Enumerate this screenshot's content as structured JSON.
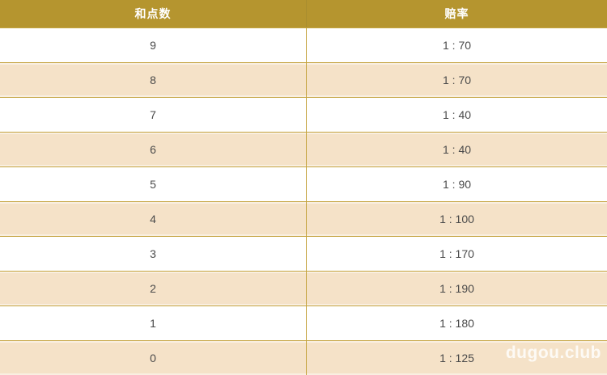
{
  "table": {
    "columns": [
      {
        "label": "和点数"
      },
      {
        "label": "赔率"
      }
    ],
    "rows": [
      {
        "points": "9",
        "odds": "1 : 70"
      },
      {
        "points": "8",
        "odds": "1 : 70"
      },
      {
        "points": "7",
        "odds": "1 : 40"
      },
      {
        "points": "6",
        "odds": "1 : 40"
      },
      {
        "points": "5",
        "odds": "1 : 90"
      },
      {
        "points": "4",
        "odds": "1 : 100"
      },
      {
        "points": "3",
        "odds": "1 : 170"
      },
      {
        "points": "2",
        "odds": "1 : 190"
      },
      {
        "points": "1",
        "odds": "1 : 180"
      },
      {
        "points": "0",
        "odds": "1 : 125"
      }
    ]
  },
  "watermark": "dugou.club",
  "colors": {
    "header_bg": "#b5952f",
    "header_text": "#ffffff",
    "header_divider": "#a98d2f",
    "row_alt_bg": "#f5e2c8",
    "border": "#c5a440",
    "text": "#4a4a4a"
  }
}
